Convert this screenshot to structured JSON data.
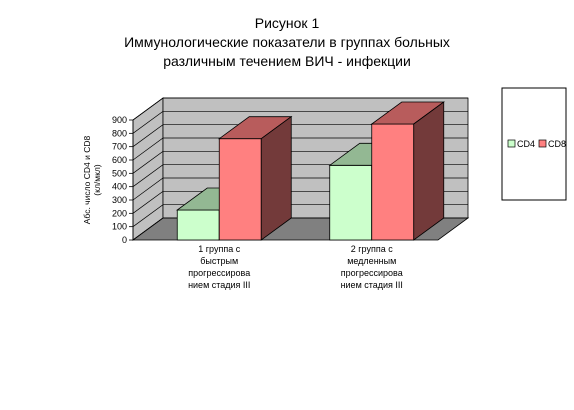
{
  "chart_data": {
    "type": "bar",
    "title_lines": [
      "Рисунок 1",
      "Иммунологические показатели в группах больных",
      "различным течением ВИЧ - инфекции"
    ],
    "ylabel_lines": [
      "Абс. число CD4 и CD8",
      "(кл/мкл)"
    ],
    "xlabel": "",
    "categories": [
      [
        "1 группа с",
        "быстрым",
        "прогрессирова",
        "нием стадия III"
      ],
      [
        "2 группа с",
        "медленным",
        "прогрессирова",
        "нием стадия III"
      ]
    ],
    "series": [
      {
        "name": "CD4",
        "values": [
          225,
          560
        ],
        "color": "#ccffcc"
      },
      {
        "name": "CD8",
        "values": [
          760,
          870
        ],
        "color": "#ff8080"
      }
    ],
    "ylim": [
      0,
      900
    ],
    "yticks": [
      0,
      100,
      200,
      300,
      400,
      500,
      600,
      700,
      800,
      900
    ],
    "grid": true,
    "legend": "right",
    "three_d": true,
    "colors": {
      "wall": "#c0c0c0",
      "floor": "#808080",
      "grid": "#000000"
    }
  }
}
